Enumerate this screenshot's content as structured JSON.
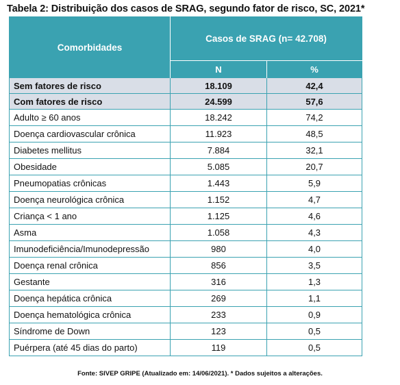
{
  "title": "Tabela 2: Distribuição dos casos de SRAG, segundo fator de risco, SC, 2021*",
  "table": {
    "col_comorb": "Comorbidades",
    "col_cases": "Casos de SRAG (n= 42.708)",
    "col_n": "N",
    "col_pct": "%",
    "groups": [
      {
        "label": "Sem fatores de risco",
        "n": "18.109",
        "pct": "42,4"
      },
      {
        "label": "Com fatores de risco",
        "n": "24.599",
        "pct": "57,6"
      }
    ],
    "rows": [
      {
        "label": "Adulto ≥ 60 anos",
        "n": "18.242",
        "pct": "74,2"
      },
      {
        "label": "Doença cardiovascular crônica",
        "n": "11.923",
        "pct": "48,5"
      },
      {
        "label": "Diabetes mellitus",
        "n": "7.884",
        "pct": "32,1"
      },
      {
        "label": "Obesidade",
        "n": "5.085",
        "pct": "20,7"
      },
      {
        "label": "Pneumopatias crônicas",
        "n": "1.443",
        "pct": "5,9"
      },
      {
        "label": "Doença neurológica crônica",
        "n": "1.152",
        "pct": "4,7"
      },
      {
        "label": "Criança < 1 ano",
        "n": "1.125",
        "pct": "4,6"
      },
      {
        "label": "Asma",
        "n": "1.058",
        "pct": "4,3"
      },
      {
        "label": "Imunodeficiência/Imunodepressão",
        "n": "980",
        "pct": "4,0"
      },
      {
        "label": "Doença renal crônica",
        "n": "856",
        "pct": "3,5"
      },
      {
        "label": "Gestante",
        "n": "316",
        "pct": "1,3"
      },
      {
        "label": "Doença hepática crônica",
        "n": "269",
        "pct": "1,1"
      },
      {
        "label": "Doença hematológica crônica",
        "n": "233",
        "pct": "0,9"
      },
      {
        "label": "Síndrome de Down",
        "n": "123",
        "pct": "0,5"
      },
      {
        "label": "Puérpera (até 45 dias do parto)",
        "n": "119",
        "pct": "0,5"
      }
    ]
  },
  "source": "Fonte: SIVEP GRIPE (Atualizado em: 14/06/2021). * Dados sujeitos a alterações."
}
